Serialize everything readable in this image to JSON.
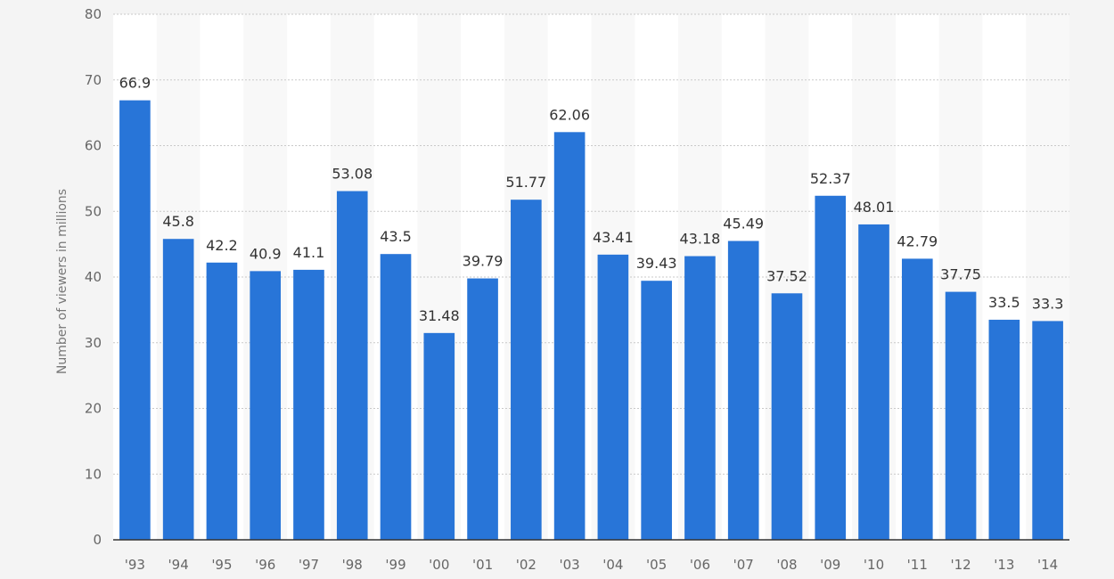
{
  "chart_data": {
    "type": "bar",
    "title": "",
    "xlabel": "",
    "ylabel": "Number of viewers in millions",
    "ylim": [
      0,
      80
    ],
    "yticks": [
      0,
      10,
      20,
      30,
      40,
      50,
      60,
      70,
      80
    ],
    "grid": true,
    "grid_style": "dotted",
    "legend": "none",
    "categories": [
      "'93",
      "'94",
      "'95",
      "'96",
      "'97",
      "'98",
      "'99",
      "'00",
      "'01",
      "'02",
      "'03",
      "'04",
      "'05",
      "'06",
      "'07",
      "'08",
      "'09",
      "'10",
      "'11",
      "'12",
      "'13",
      "'14"
    ],
    "values": [
      66.9,
      45.8,
      42.2,
      40.9,
      41.1,
      53.08,
      43.5,
      31.48,
      39.79,
      51.77,
      62.06,
      43.41,
      39.43,
      43.18,
      45.49,
      37.52,
      52.37,
      48.01,
      42.79,
      37.75,
      33.5,
      33.3
    ],
    "value_labels": [
      "66.9",
      "45.8",
      "42.2",
      "40.9",
      "41.1",
      "53.08",
      "43.5",
      "31.48",
      "39.79",
      "51.77",
      "62.06",
      "43.41",
      "39.43",
      "43.18",
      "45.49",
      "37.52",
      "52.37",
      "48.01",
      "42.79",
      "37.75",
      "33.5",
      "33.3"
    ],
    "colors": {
      "bar": "#2875d8",
      "plot_background": "#ffffff",
      "alternate_band": "#f8f8f8",
      "page_background": "#f4f4f4",
      "grid": "#c9c9c9",
      "axis": "#333333"
    }
  }
}
